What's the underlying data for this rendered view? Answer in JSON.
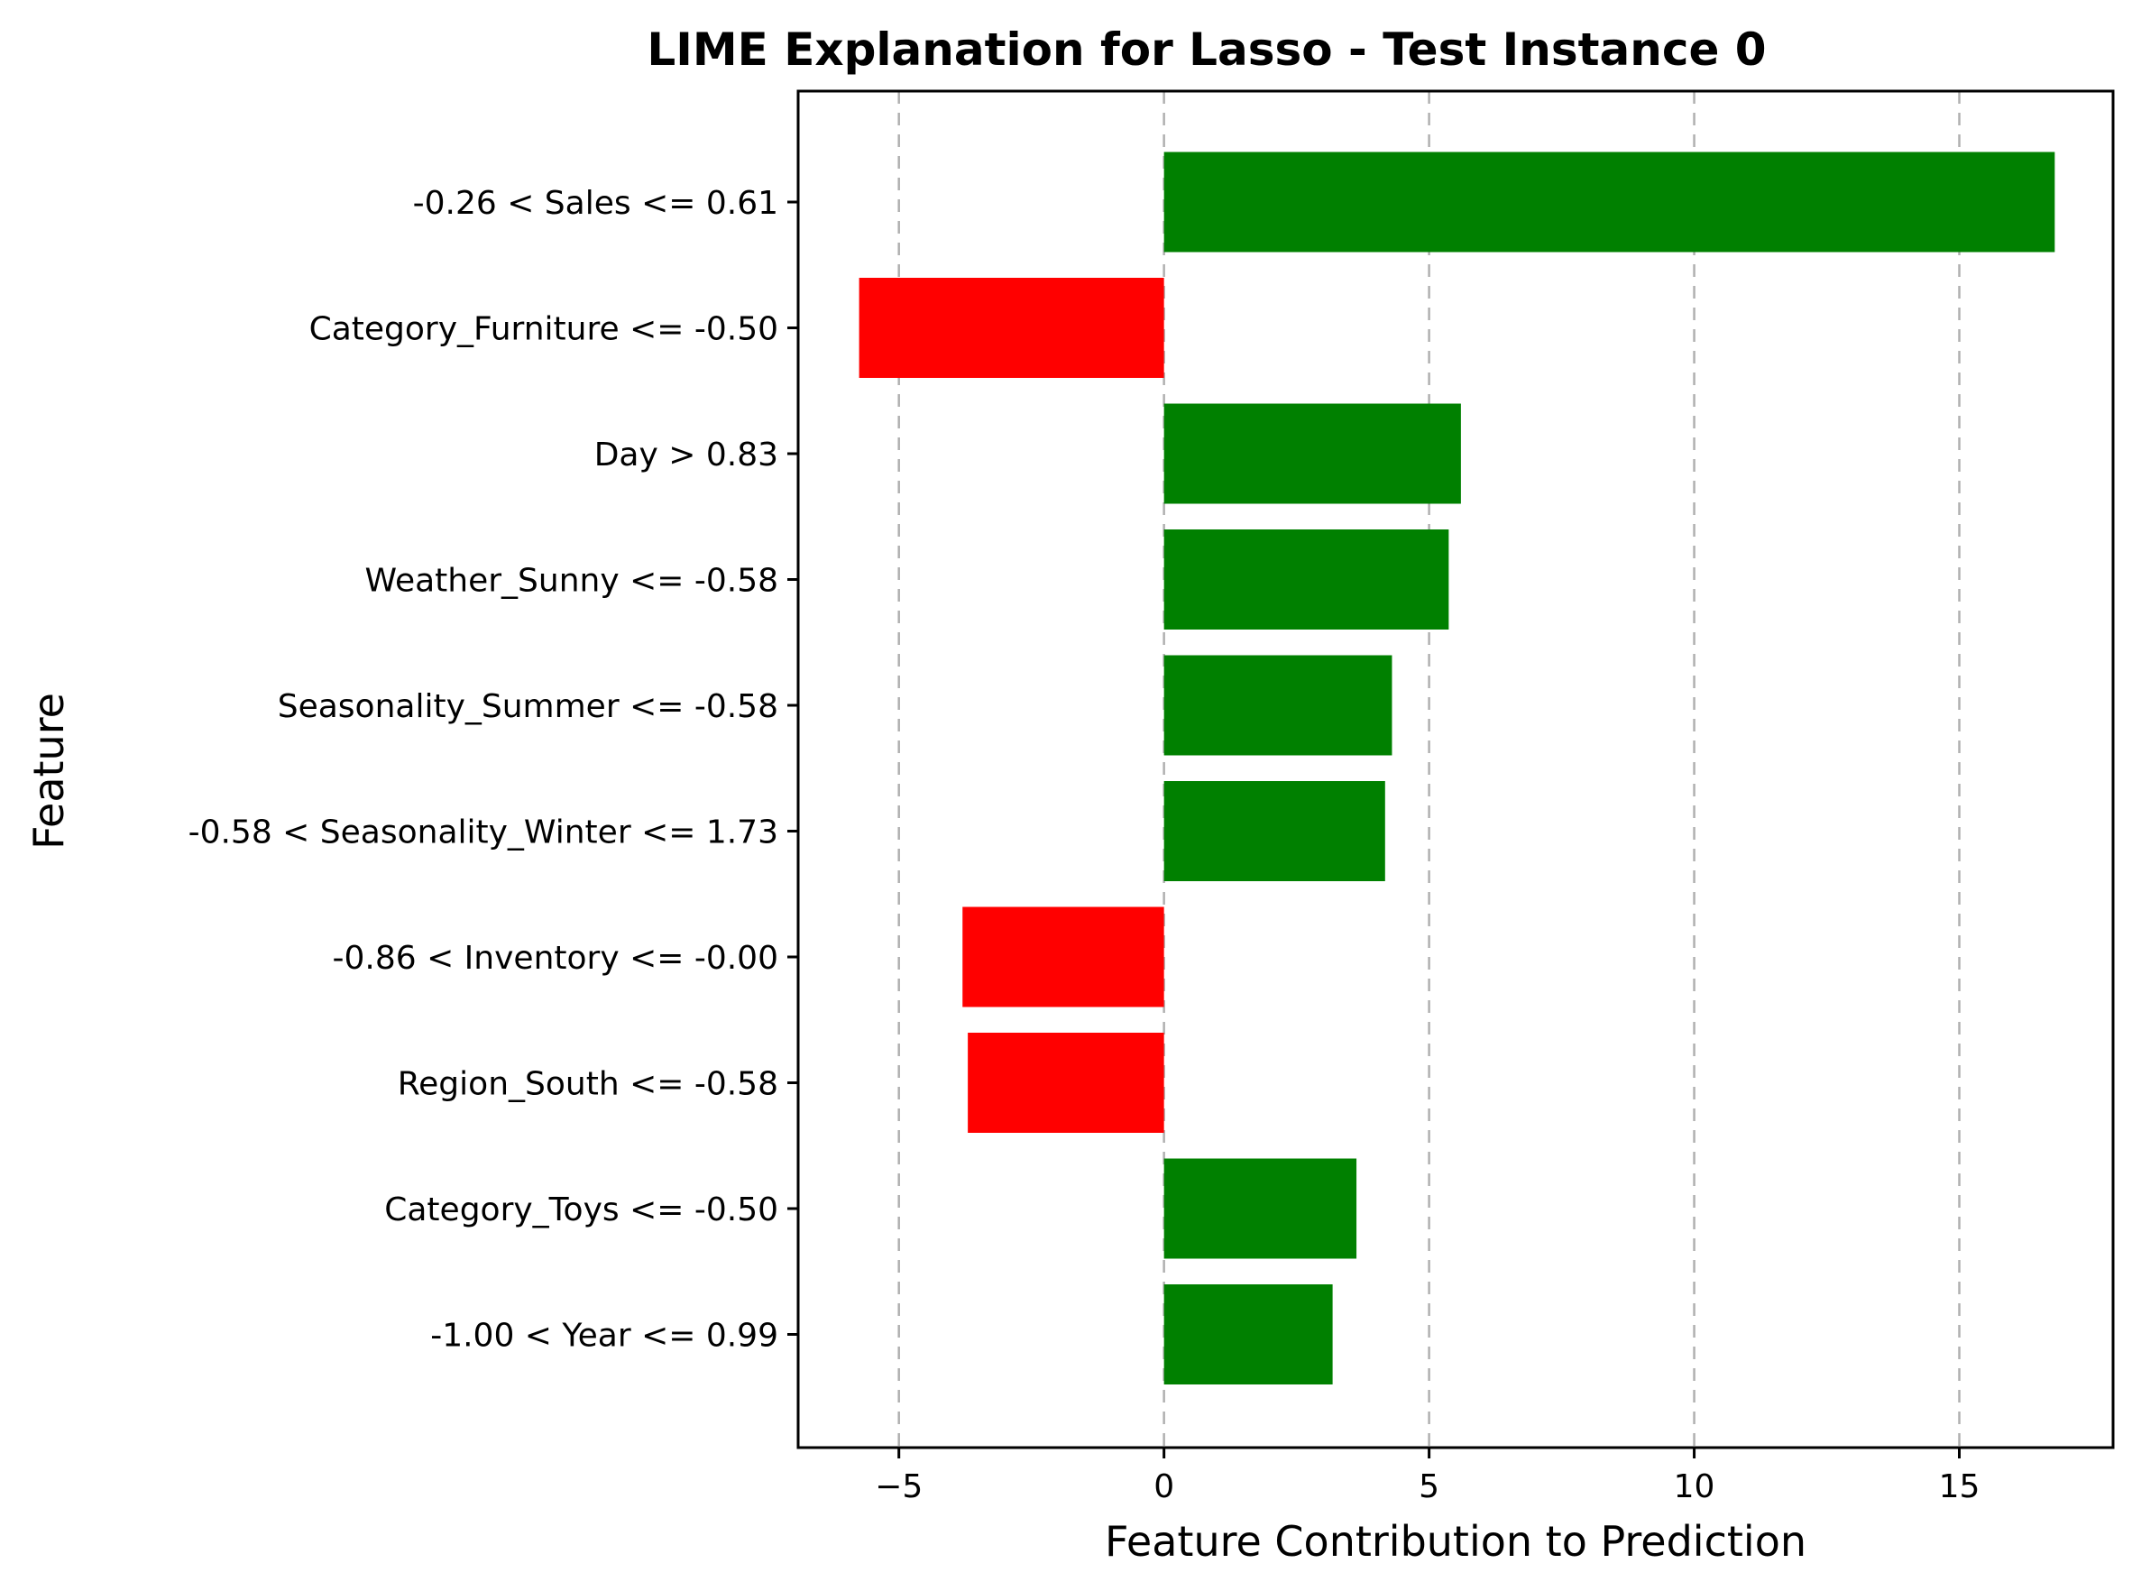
{
  "chart_data": {
    "type": "bar",
    "orientation": "horizontal",
    "title": "LIME Explanation for Lasso - Test Instance 0",
    "xlabel": "Feature Contribution to Prediction",
    "ylabel": "Feature",
    "xlim": [
      -6.9,
      17.9
    ],
    "xticks": [
      -5,
      0,
      5,
      10,
      15
    ],
    "xtick_labels": [
      "−5",
      "0",
      "5",
      "10",
      "15"
    ],
    "grid": "x-axis dashed",
    "categories": [
      "-0.26 < Sales <= 0.61",
      "Category_Furniture <= -0.50",
      "Day > 0.83",
      "Weather_Sunny <= -0.58",
      "Seasonality_Summer <= -0.58",
      "-0.58 < Seasonality_Winter <= 1.73",
      "-0.86 < Inventory <= -0.00",
      "Region_South <= -0.58",
      "Category_Toys <= -0.50",
      "-1.00 < Year <= 0.99"
    ],
    "values": [
      16.8,
      -5.75,
      5.6,
      5.37,
      4.3,
      4.17,
      -3.8,
      -3.7,
      3.63,
      3.18
    ],
    "colors": {
      "positive": "#008000",
      "negative": "#ff0000"
    }
  }
}
